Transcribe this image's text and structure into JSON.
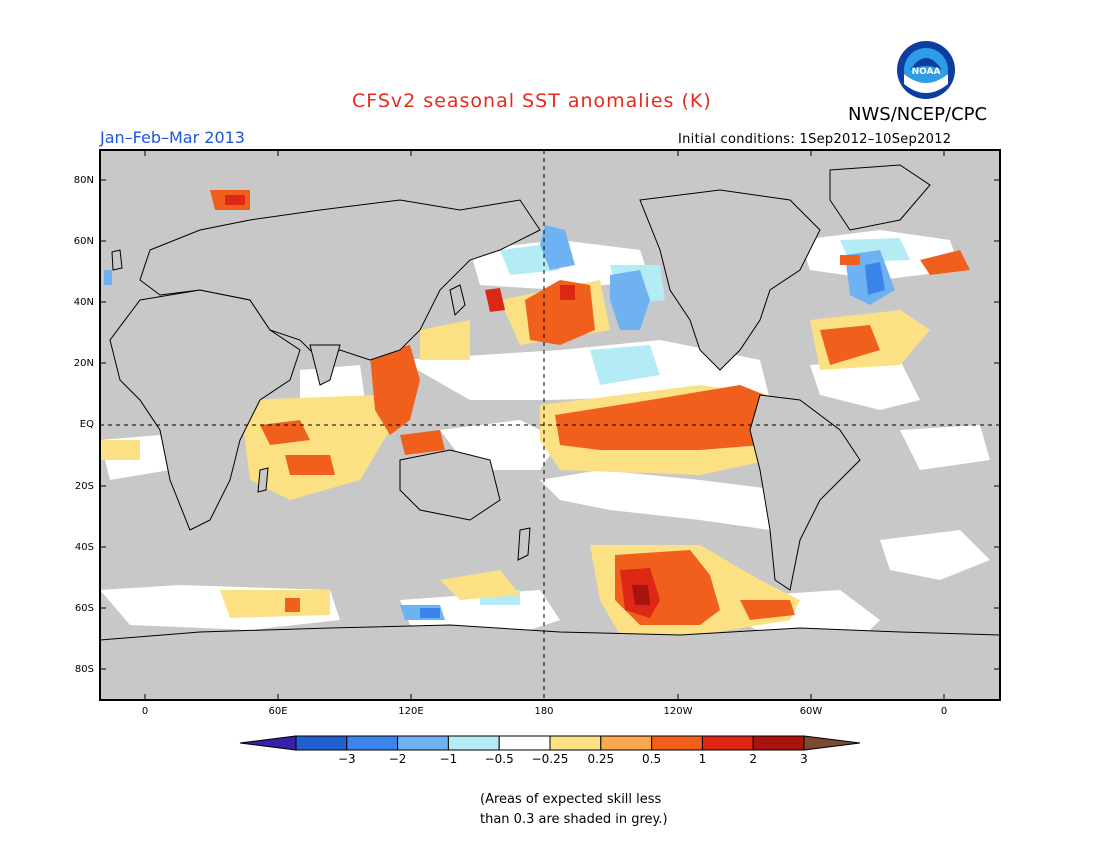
{
  "title": "CFSv2 seasonal SST anomalies (K)",
  "agency": "NWS/NCEP/CPC",
  "logo_text": "NOAA",
  "season": "Jan–Feb–Mar 2013",
  "initial_conditions": "Initial conditions: 1Sep2012–10Sep2012",
  "lat_labels": [
    "80N",
    "60N",
    "40N",
    "20N",
    "EQ",
    "20S",
    "40S",
    "60S",
    "80S"
  ],
  "lon_labels": [
    "0",
    "60E",
    "120E",
    "180",
    "120W",
    "60W",
    "0"
  ],
  "colorbar": {
    "labels": [
      "−3",
      "−2",
      "−1",
      "−0.5",
      "−0.25",
      "0.25",
      "0.5",
      "1",
      "2",
      "3"
    ],
    "colors": [
      "#3a1fa8",
      "#1e5fd1",
      "#3b84ea",
      "#6fb2f2",
      "#b4ecf6",
      "#ffffff",
      "#fce184",
      "#fba94e",
      "#f0601c",
      "#dc2814",
      "#a8130d",
      "#7b4a33"
    ]
  },
  "note": {
    "line1": "(Areas of expected skill less",
    "line2": "than 0.3 are shaded in grey.)"
  },
  "colors": {
    "skill_mask_grey": "#c8c8c8",
    "title_red": "#e8291c",
    "season_blue": "#1f55d8"
  }
}
